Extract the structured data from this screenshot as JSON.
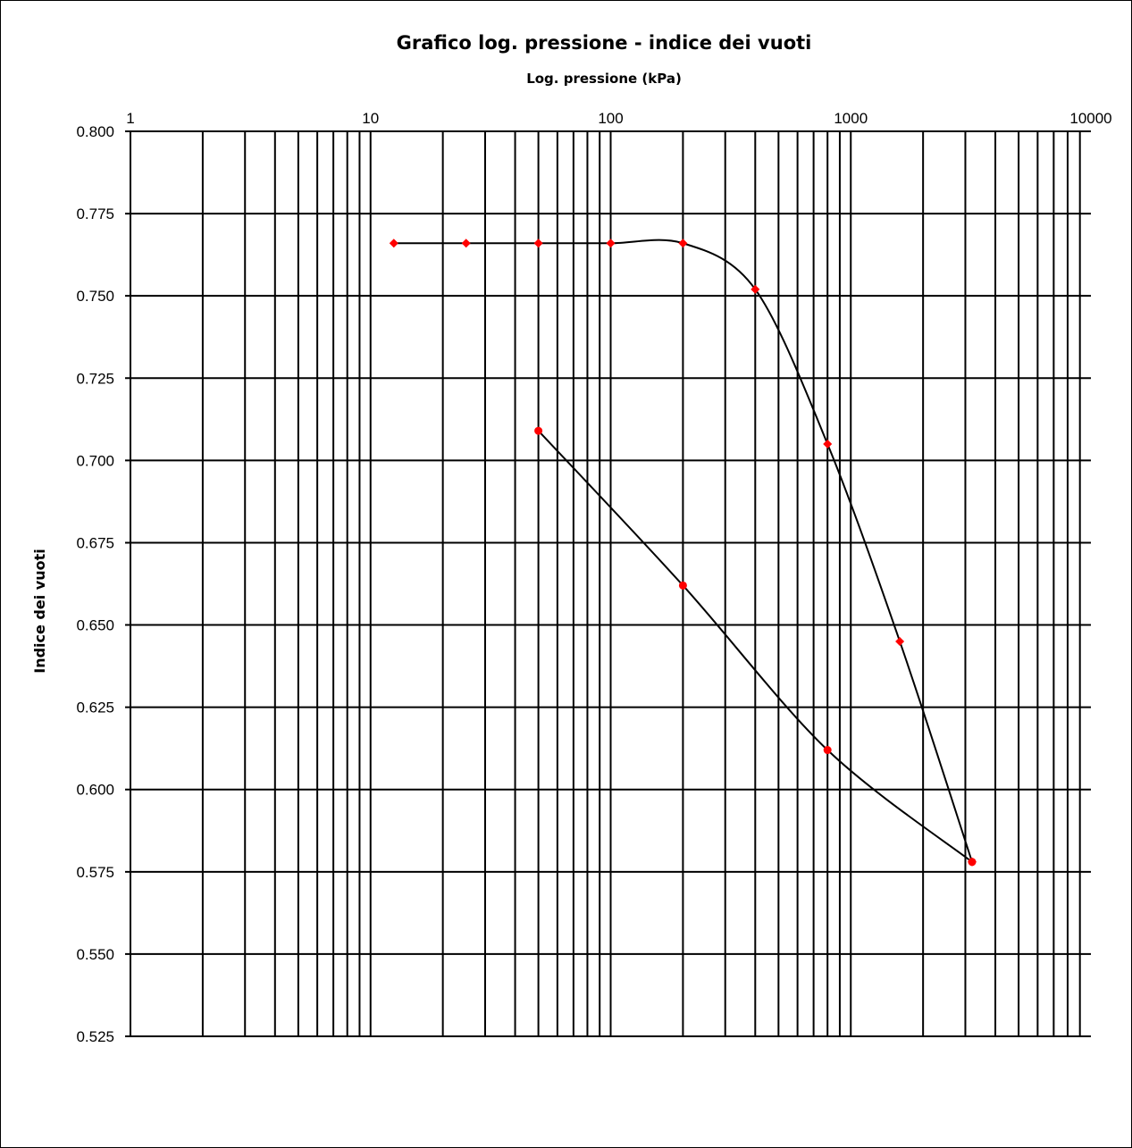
{
  "chart_data": {
    "type": "scatter",
    "title": "Grafico log. pressione - indice dei vuoti",
    "xlabel": "Log. pressione (kPa)",
    "ylabel": "Indice dei vuoti",
    "x_scale": "log",
    "xlim": [
      1,
      10000
    ],
    "ylim": [
      0.525,
      0.8
    ],
    "x_tick_labels": [
      "1",
      "10",
      "100",
      "1000",
      "10000"
    ],
    "y_tick_labels": [
      "0.800",
      "0.775",
      "0.750",
      "0.725",
      "0.700",
      "0.675",
      "0.650",
      "0.625",
      "0.600",
      "0.575",
      "0.550",
      "0.525"
    ],
    "grid": true,
    "x_axis_position": "top",
    "series": [
      {
        "marker": "diamond",
        "color": "#ff0000",
        "x": [
          12.5,
          25,
          50,
          100,
          200,
          400,
          800,
          1600,
          3200
        ],
        "y": [
          0.766,
          0.766,
          0.766,
          0.766,
          0.766,
          0.752,
          0.705,
          0.645,
          0.578
        ]
      },
      {
        "marker": "circle",
        "color": "#ff0000",
        "x": [
          3200,
          800,
          200,
          50
        ],
        "y": [
          0.578,
          0.612,
          0.662,
          0.709
        ]
      }
    ],
    "line_color": "#000000"
  }
}
